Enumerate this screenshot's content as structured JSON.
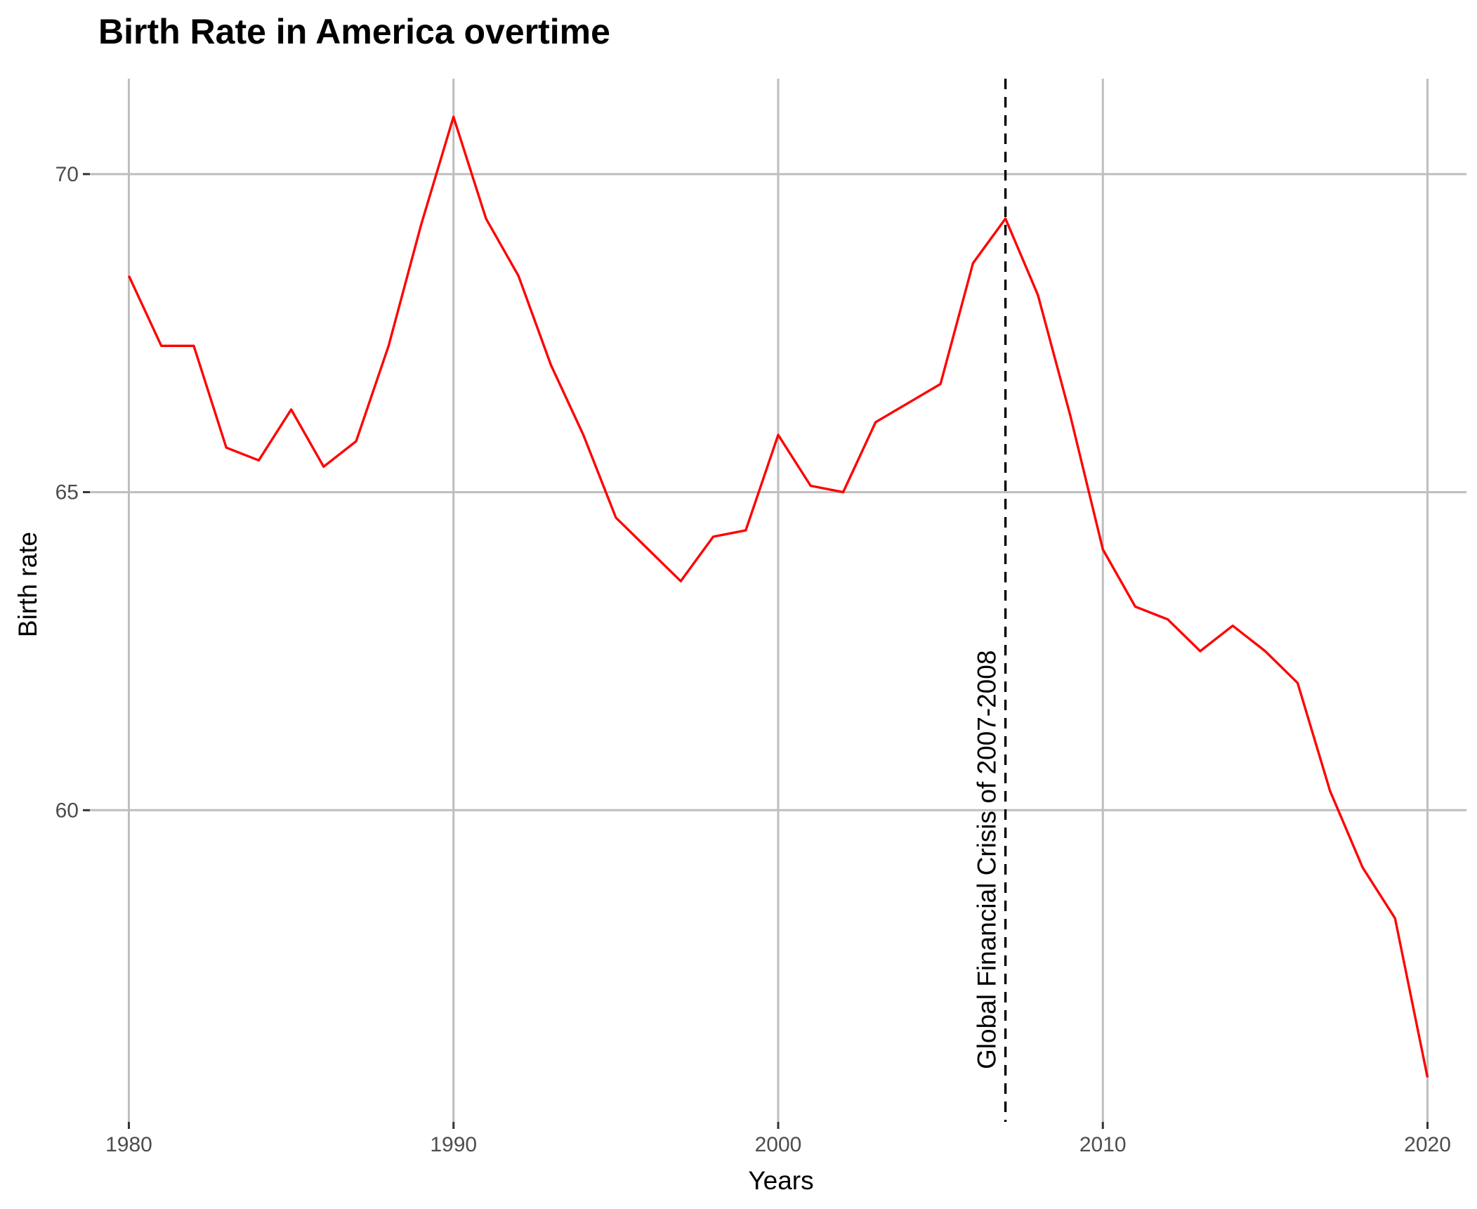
{
  "chart_data": {
    "type": "line",
    "title": "Birth Rate in America overtime",
    "xlabel": "Years",
    "ylabel": "Birth rate",
    "xlim": [
      1978.8,
      2021.2
    ],
    "ylim": [
      55.1,
      71.5
    ],
    "x_ticks": [
      1980,
      1990,
      2000,
      2010,
      2020
    ],
    "y_ticks": [
      60,
      65,
      70
    ],
    "x_tick_labels": [
      "1980",
      "1990",
      "2000",
      "2010",
      "2020"
    ],
    "y_tick_labels": [
      "60",
      "65",
      "70"
    ],
    "grid": true,
    "legend": "none",
    "series": [
      {
        "color": "#ff0000",
        "x": [
          1980,
          1981,
          1982,
          1983,
          1984,
          1985,
          1986,
          1987,
          1988,
          1989,
          1990,
          1991,
          1992,
          1993,
          1994,
          1995,
          1996,
          1997,
          1998,
          1999,
          2000,
          2001,
          2002,
          2003,
          2004,
          2005,
          2006,
          2007,
          2008,
          2009,
          2010,
          2011,
          2012,
          2013,
          2014,
          2015,
          2016,
          2017,
          2018,
          2019,
          2020
        ],
        "values": [
          68.4,
          67.3,
          67.3,
          65.7,
          65.5,
          66.3,
          65.4,
          65.8,
          67.3,
          69.2,
          70.9,
          69.3,
          68.4,
          67.0,
          65.9,
          64.6,
          64.1,
          63.6,
          64.3,
          64.4,
          65.9,
          65.1,
          65.0,
          66.1,
          66.4,
          66.7,
          68.6,
          69.3,
          68.1,
          66.2,
          64.1,
          63.2,
          63.0,
          62.5,
          62.9,
          62.5,
          62.0,
          60.3,
          59.1,
          58.3,
          55.8
        ]
      }
    ],
    "annotations": [
      {
        "type": "vline",
        "x": 2007,
        "style": "dashed",
        "color": "#000000",
        "label": "Global Financial Crisis of 2007-2008"
      }
    ]
  }
}
